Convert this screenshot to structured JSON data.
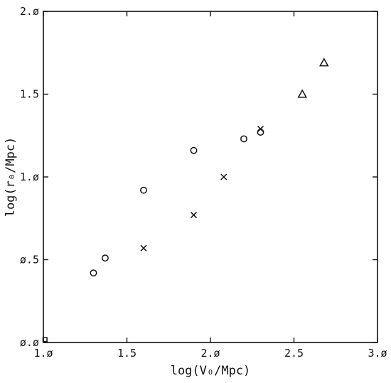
{
  "chart_data": {
    "type": "scatter",
    "xlabel": "log(V₀/Mpc)",
    "ylabel": "log(r₀/Mpc)",
    "xlim": [
      1.0,
      3.0
    ],
    "ylim": [
      0.0,
      2.0
    ],
    "x_ticks": [
      1.0,
      1.5,
      2.0,
      2.5,
      3.0
    ],
    "y_ticks": [
      0.0,
      0.5,
      1.0,
      1.5,
      2.0
    ],
    "x_tick_labels": [
      "1.ø",
      "1.5",
      "2.ø",
      "2.5",
      "3.ø"
    ],
    "y_tick_labels": [
      "ø.ø",
      "ø.5",
      "1.ø",
      "1.5",
      "2.ø"
    ],
    "grid": false,
    "legend": "none",
    "series": [
      {
        "marker": "circle",
        "points": [
          [
            1.3,
            0.42
          ],
          [
            1.37,
            0.51
          ],
          [
            1.6,
            0.92
          ],
          [
            1.9,
            1.16
          ],
          [
            2.2,
            1.23
          ],
          [
            2.3,
            1.27
          ]
        ]
      },
      {
        "marker": "cross",
        "points": [
          [
            1.6,
            0.57
          ],
          [
            1.9,
            0.77
          ],
          [
            2.08,
            1.0
          ],
          [
            2.3,
            1.29
          ]
        ]
      },
      {
        "marker": "triangle",
        "points": [
          [
            2.55,
            1.5
          ],
          [
            2.68,
            1.69
          ]
        ]
      },
      {
        "marker": "square",
        "points": [
          [
            1.0,
            0.01
          ]
        ]
      }
    ]
  }
}
